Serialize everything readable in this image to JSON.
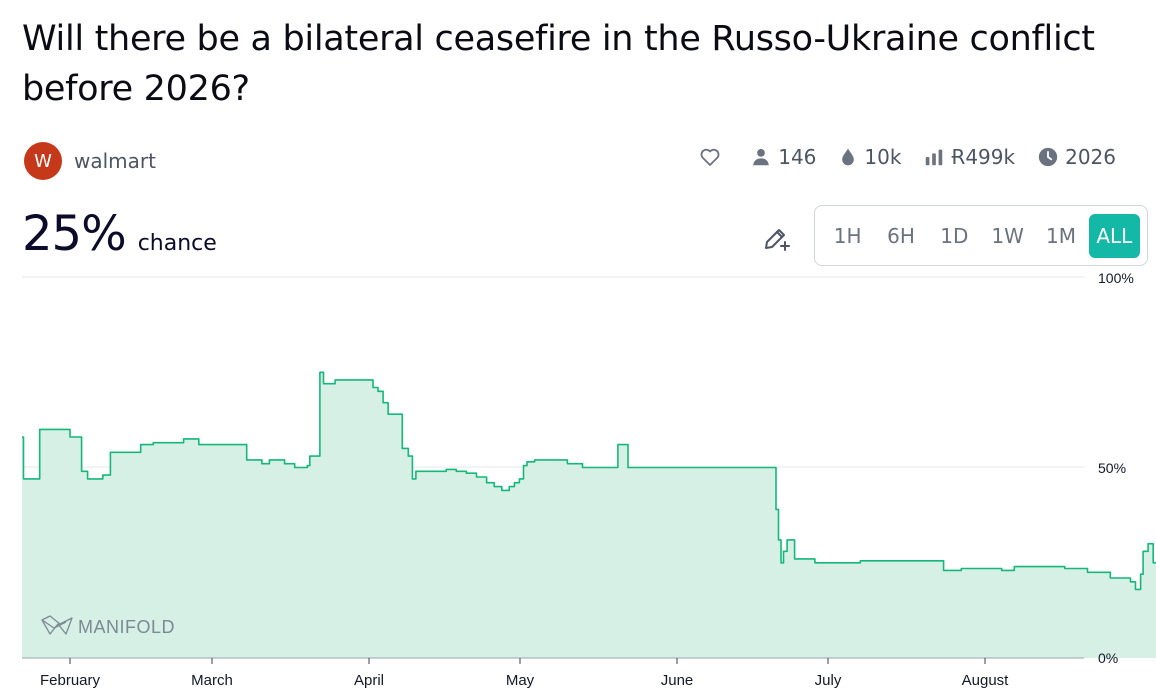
{
  "market": {
    "title": "Will there be a bilateral ceasefire in the Russo-Ukraine conflict before 2026?",
    "creator": {
      "initial": "W",
      "name": "walmart",
      "avatar_color": "#c5381a"
    },
    "stats": {
      "traders": "146",
      "liquidity": "10k",
      "volume": "Ɍ499k",
      "close": "2026"
    },
    "probability": {
      "value": "25%",
      "label": "chance"
    }
  },
  "time_range": {
    "buttons": [
      "1H",
      "6H",
      "1D",
      "1W",
      "1M",
      "ALL"
    ],
    "selected": "ALL"
  },
  "colors": {
    "accent": "#14b8a6",
    "line": "#14b87a",
    "fill": "#d6f0e5"
  },
  "watermark": "MANIFOLD",
  "chart_data": {
    "type": "line",
    "title": "",
    "xlabel": "",
    "ylabel": "",
    "ylim": [
      0,
      100
    ],
    "y_ticks": [
      "100%",
      "50%",
      "0%"
    ],
    "x_ticks": [
      "February",
      "March",
      "April",
      "May",
      "June",
      "July",
      "August"
    ],
    "series": [
      {
        "values": [
          [
            0,
            58
          ],
          [
            0.3,
            47
          ],
          [
            3,
            47
          ],
          [
            3.5,
            60
          ],
          [
            9,
            60
          ],
          [
            9.5,
            58
          ],
          [
            11.5,
            58
          ],
          [
            11.8,
            49
          ],
          [
            13,
            47
          ],
          [
            15,
            47
          ],
          [
            16,
            48
          ],
          [
            17.5,
            54
          ],
          [
            22,
            54
          ],
          [
            23.5,
            56
          ],
          [
            25,
            56
          ],
          [
            26,
            56.5
          ],
          [
            30,
            56.5
          ],
          [
            32,
            57.5
          ],
          [
            34,
            57.5
          ],
          [
            35,
            56
          ],
          [
            40,
            56
          ],
          [
            44,
            56
          ],
          [
            44.5,
            52
          ],
          [
            46.5,
            52
          ],
          [
            47.5,
            51
          ],
          [
            49,
            52
          ],
          [
            51,
            52
          ],
          [
            52,
            51
          ],
          [
            54,
            50
          ],
          [
            55.5,
            50
          ],
          [
            56.5,
            50.5
          ],
          [
            57,
            53
          ],
          [
            58.5,
            53
          ],
          [
            59,
            75
          ],
          [
            59.7,
            72
          ],
          [
            61.5,
            72
          ],
          [
            62,
            73
          ],
          [
            66,
            73
          ],
          [
            68.5,
            73
          ],
          [
            69.5,
            71
          ],
          [
            70.5,
            70
          ],
          [
            71.5,
            67
          ],
          [
            72.5,
            64
          ],
          [
            74.5,
            64
          ],
          [
            75.3,
            55
          ],
          [
            76.5,
            53
          ],
          [
            77.3,
            47
          ],
          [
            78,
            49
          ],
          [
            82,
            49
          ],
          [
            84,
            49.5
          ],
          [
            86,
            49
          ],
          [
            88,
            48.5
          ],
          [
            90,
            47.5
          ],
          [
            92,
            46
          ],
          [
            93.5,
            45
          ],
          [
            95,
            44
          ],
          [
            96,
            44
          ],
          [
            96.5,
            45
          ],
          [
            97.5,
            46
          ],
          [
            98.5,
            47
          ],
          [
            99.3,
            50.5
          ],
          [
            100,
            51.5
          ],
          [
            101.5,
            52
          ],
          [
            107,
            52
          ],
          [
            108,
            51
          ],
          [
            110,
            51
          ],
          [
            111,
            50
          ],
          [
            117,
            50
          ],
          [
            118,
            56
          ],
          [
            119.5,
            56
          ],
          [
            120,
            50
          ],
          [
            130,
            50
          ],
          [
            140,
            50
          ],
          [
            148,
            50
          ],
          [
            149,
            50
          ],
          [
            149.3,
            39
          ],
          [
            149.8,
            31
          ],
          [
            150.3,
            25
          ],
          [
            150.8,
            28
          ],
          [
            151.5,
            31
          ],
          [
            153,
            26
          ],
          [
            154.5,
            26
          ],
          [
            157,
            25
          ],
          [
            163,
            25
          ],
          [
            166,
            25.5
          ],
          [
            175,
            25.5
          ],
          [
            182,
            25.5
          ],
          [
            182.5,
            23
          ],
          [
            186,
            23.5
          ],
          [
            192,
            23.5
          ],
          [
            194,
            23
          ],
          [
            196.5,
            24
          ],
          [
            205,
            24
          ],
          [
            206.5,
            23.5
          ],
          [
            210.5,
            23.5
          ],
          [
            211,
            22.5
          ],
          [
            214.5,
            22.5
          ],
          [
            215.5,
            21
          ],
          [
            219.5,
            20
          ],
          [
            220.5,
            18
          ],
          [
            221.5,
            22
          ],
          [
            222,
            28
          ],
          [
            223,
            30
          ],
          [
            224,
            25
          ],
          [
            225,
            22
          ],
          [
            226,
            20
          ],
          [
            228,
            24
          ],
          [
            232,
            24
          ],
          [
            232.5,
            19
          ],
          [
            233.5,
            18
          ],
          [
            234.5,
            16.5
          ],
          [
            235,
            22
          ],
          [
            235.5,
            28
          ],
          [
            236.5,
            25
          ],
          [
            237,
            26
          ],
          [
            238,
            29
          ],
          [
            238.5,
            26
          ],
          [
            239.5,
            25
          ]
        ]
      }
    ]
  }
}
